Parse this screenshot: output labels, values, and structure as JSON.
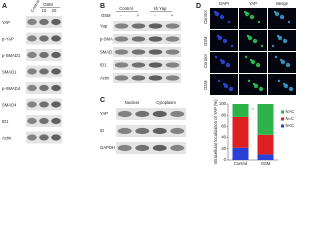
{
  "panel_a": {
    "letter": "A",
    "group": "OSM",
    "control": "Control",
    "lanes": [
      "10",
      "20"
    ],
    "rows": [
      "YAP",
      "p-YAP",
      "p-SMAD1",
      "SMAD1",
      "p-SMAD4",
      "SMAD4",
      "ID1",
      "Actin"
    ]
  },
  "panel_b": {
    "letter": "B",
    "groups": [
      "Control",
      "sh Yap"
    ],
    "treatment": "OSM",
    "signs": [
      "-",
      "+",
      "-",
      "+"
    ],
    "rows": [
      "Yap",
      "p-SMAD1",
      "SMAD1",
      "ID1",
      "Actin"
    ]
  },
  "panel_c": {
    "letter": "C",
    "groups": [
      "Nuclear",
      "Cytoplasm"
    ],
    "rows": [
      "YAP",
      "ID",
      "GAPDH"
    ]
  },
  "panel_d": {
    "letter": "D",
    "columns": [
      "DAPI",
      "YAP",
      "Merge"
    ],
    "rows": [
      "Control",
      "OSM",
      "Control",
      "OSM"
    ]
  },
  "chart_data": {
    "type": "stacked_bar",
    "y_label": "Intracellular localization of YAP (%)",
    "categories": [
      "Control",
      "OSM"
    ],
    "series": [
      {
        "name": "N<C",
        "color": "#2a3fd6",
        "values": [
          22,
          10
        ]
      },
      {
        "name": "N=C",
        "color": "#e02020",
        "values": [
          55,
          35
        ]
      },
      {
        "name": "N>C",
        "color": "#2db34a",
        "values": [
          23,
          55
        ]
      }
    ],
    "ylim": [
      0,
      100
    ],
    "yticks": [
      0,
      20,
      40,
      60,
      80,
      100
    ],
    "annotation": "*"
  }
}
